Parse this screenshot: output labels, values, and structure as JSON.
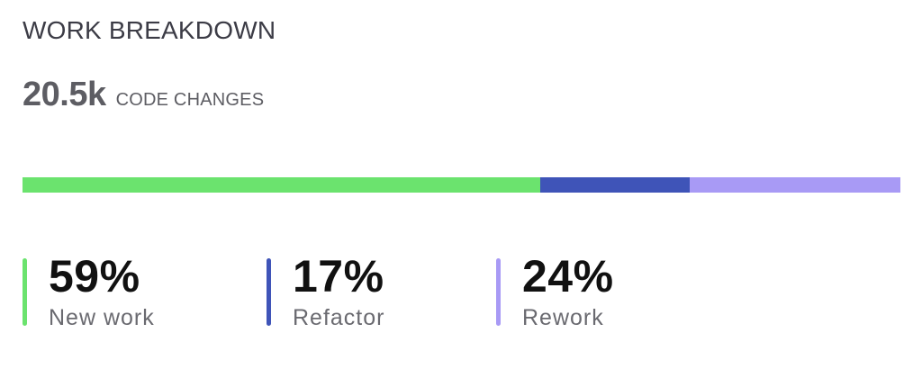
{
  "card": {
    "title": "WORK BREAKDOWN",
    "total_value": "20.5k",
    "total_label": "CODE CHANGES"
  },
  "chart_data": {
    "type": "bar",
    "title": "WORK BREAKDOWN",
    "categories": [
      "New work",
      "Refactor",
      "Rework"
    ],
    "values": [
      59,
      17,
      24
    ],
    "unit": "%",
    "colors": [
      "#6be36e",
      "#3f54b8",
      "#a89af5"
    ],
    "value_labels": [
      "59%",
      "17%",
      "24%"
    ]
  }
}
